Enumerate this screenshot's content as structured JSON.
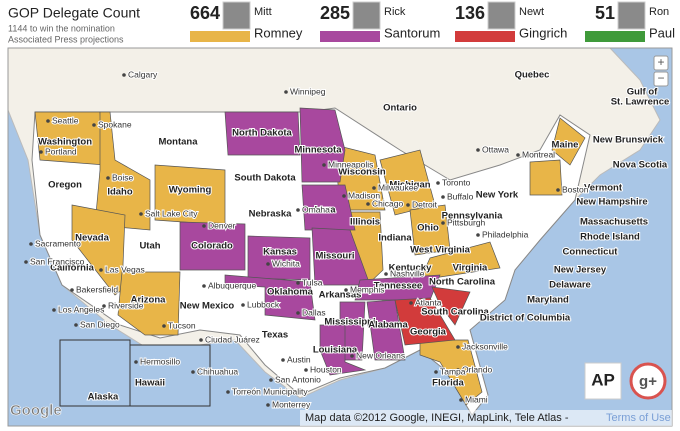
{
  "header": {
    "title": "GOP Delegate Count",
    "subtitle": [
      "1144 to win the nomination",
      "Associated Press projections"
    ]
  },
  "candidates": [
    {
      "count": "664",
      "first": "Mitt",
      "last": "Romney",
      "color": "#e8b548"
    },
    {
      "count": "285",
      "first": "Rick",
      "last": "Santorum",
      "color": "#a8489e"
    },
    {
      "count": "136",
      "first": "Newt",
      "last": "Gingrich",
      "color": "#d23b3b"
    },
    {
      "count": "51",
      "first": "Ron",
      "last": "Paul",
      "color": "#3f9a3a"
    }
  ],
  "map": {
    "state_labels": [
      "Washington",
      "Oregon",
      "California",
      "Nevada",
      "Idaho",
      "Montana",
      "Wyoming",
      "Utah",
      "Arizona",
      "Colorado",
      "New Mexico",
      "North Dakota",
      "South Dakota",
      "Nebraska",
      "Kansas",
      "Oklahoma",
      "Texas",
      "Minnesota",
      "Iowa",
      "Missouri",
      "Arkansas",
      "Louisiana",
      "Wisconsin",
      "Illinois",
      "Michigan",
      "Indiana",
      "Ohio",
      "Kentucky",
      "Tennessee",
      "Mississippi",
      "Alabama",
      "Georgia",
      "South Carolina",
      "North Carolina",
      "Florida",
      "Virginia",
      "West Virginia",
      "Pennsylvania",
      "New York",
      "Maine",
      "Vermont",
      "New Hampshire",
      "Massachusetts",
      "Rhode Island",
      "Connecticut",
      "New Jersey",
      "Delaware",
      "Maryland",
      "District of Columbia",
      "Alaska",
      "Hawaii",
      "New Brunswick",
      "Nova Scotia",
      "Quebec",
      "Ontario",
      "Gulf of",
      "St. Lawrence"
    ],
    "place_labels": [
      "Calgary",
      "Winnipeg",
      "Spokane",
      "Seattle",
      "Portland",
      "Boise",
      "Salt Lake City",
      "Sacramento",
      "San Francisco",
      "Las Vegas",
      "Bakersfield",
      "Los Angeles",
      "Riverside",
      "San Diego",
      "Tucson",
      "Albuquerque",
      "Lubbock",
      "Ciudad Juárez",
      "Dallas",
      "Houston",
      "San Antonio",
      "Austin",
      "Monterrey",
      "Torreón Municipality",
      "Chihuahua",
      "Hermosillo",
      "Denver",
      "Omaha",
      "Wichita",
      "Tulsa",
      "Minneapolis",
      "Madison",
      "Milwaukee",
      "Chicago",
      "Detroit",
      "Toronto",
      "Ottawa",
      "Montreal",
      "Boston",
      "Buffalo",
      "Pittsburgh",
      "Philadelphia",
      "Memphis",
      "Nashville",
      "Atlanta",
      "Jacksonville",
      "Orlando",
      "Tampa",
      "Miami",
      "New Orleans"
    ],
    "zoom_in": "+",
    "zoom_out": "−",
    "google": "Google",
    "attribution": "Map data ©2012 Google, INEGI, MapLink, Tele Atlas -",
    "terms": "Terms of Use",
    "ap": "AP",
    "gplus": "g+"
  }
}
